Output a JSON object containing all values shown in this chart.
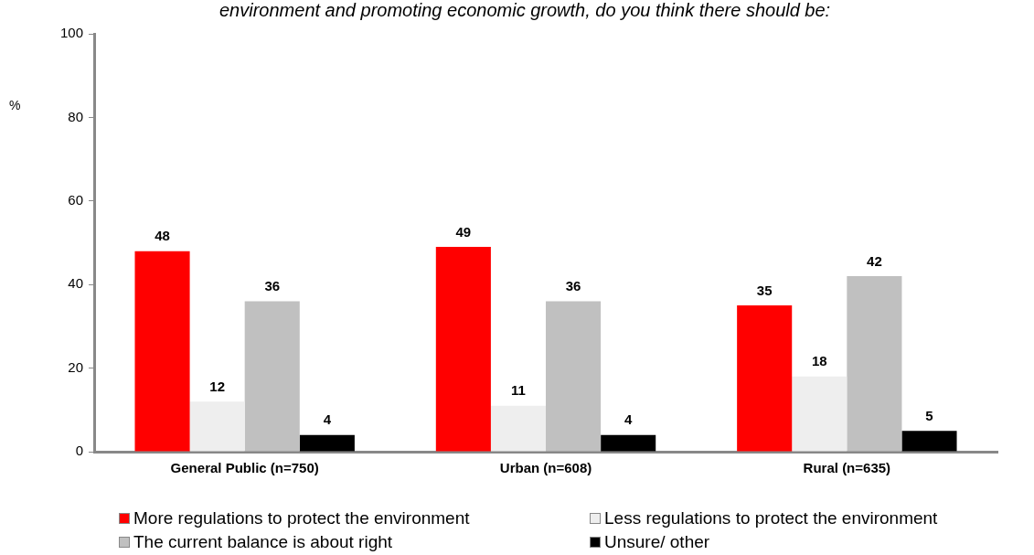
{
  "chart_data": {
    "type": "bar",
    "title": "environment and promoting economic growth, do you think there should be:",
    "ylabel": "%",
    "categories": [
      "General Public (n=750)",
      "Urban (n=608)",
      "Rural (n=635)"
    ],
    "series": [
      {
        "name": "More regulations to protect the environment",
        "color": "#ff0000",
        "values": [
          48,
          49,
          35
        ]
      },
      {
        "name": "Less regulations to protect the environment",
        "color": "#eeeeee",
        "values": [
          12,
          11,
          18
        ]
      },
      {
        "name": "The current balance is about right",
        "color": "#c0c0c0",
        "values": [
          36,
          36,
          42
        ]
      },
      {
        "name": "Unsure/ other",
        "color": "#000000",
        "values": [
          4,
          4,
          5
        ]
      }
    ],
    "ylim": [
      0,
      100
    ],
    "yticks": [
      0,
      20,
      40,
      60,
      80,
      100
    ],
    "grid": false,
    "legend": "bottom",
    "data_labels": true
  }
}
